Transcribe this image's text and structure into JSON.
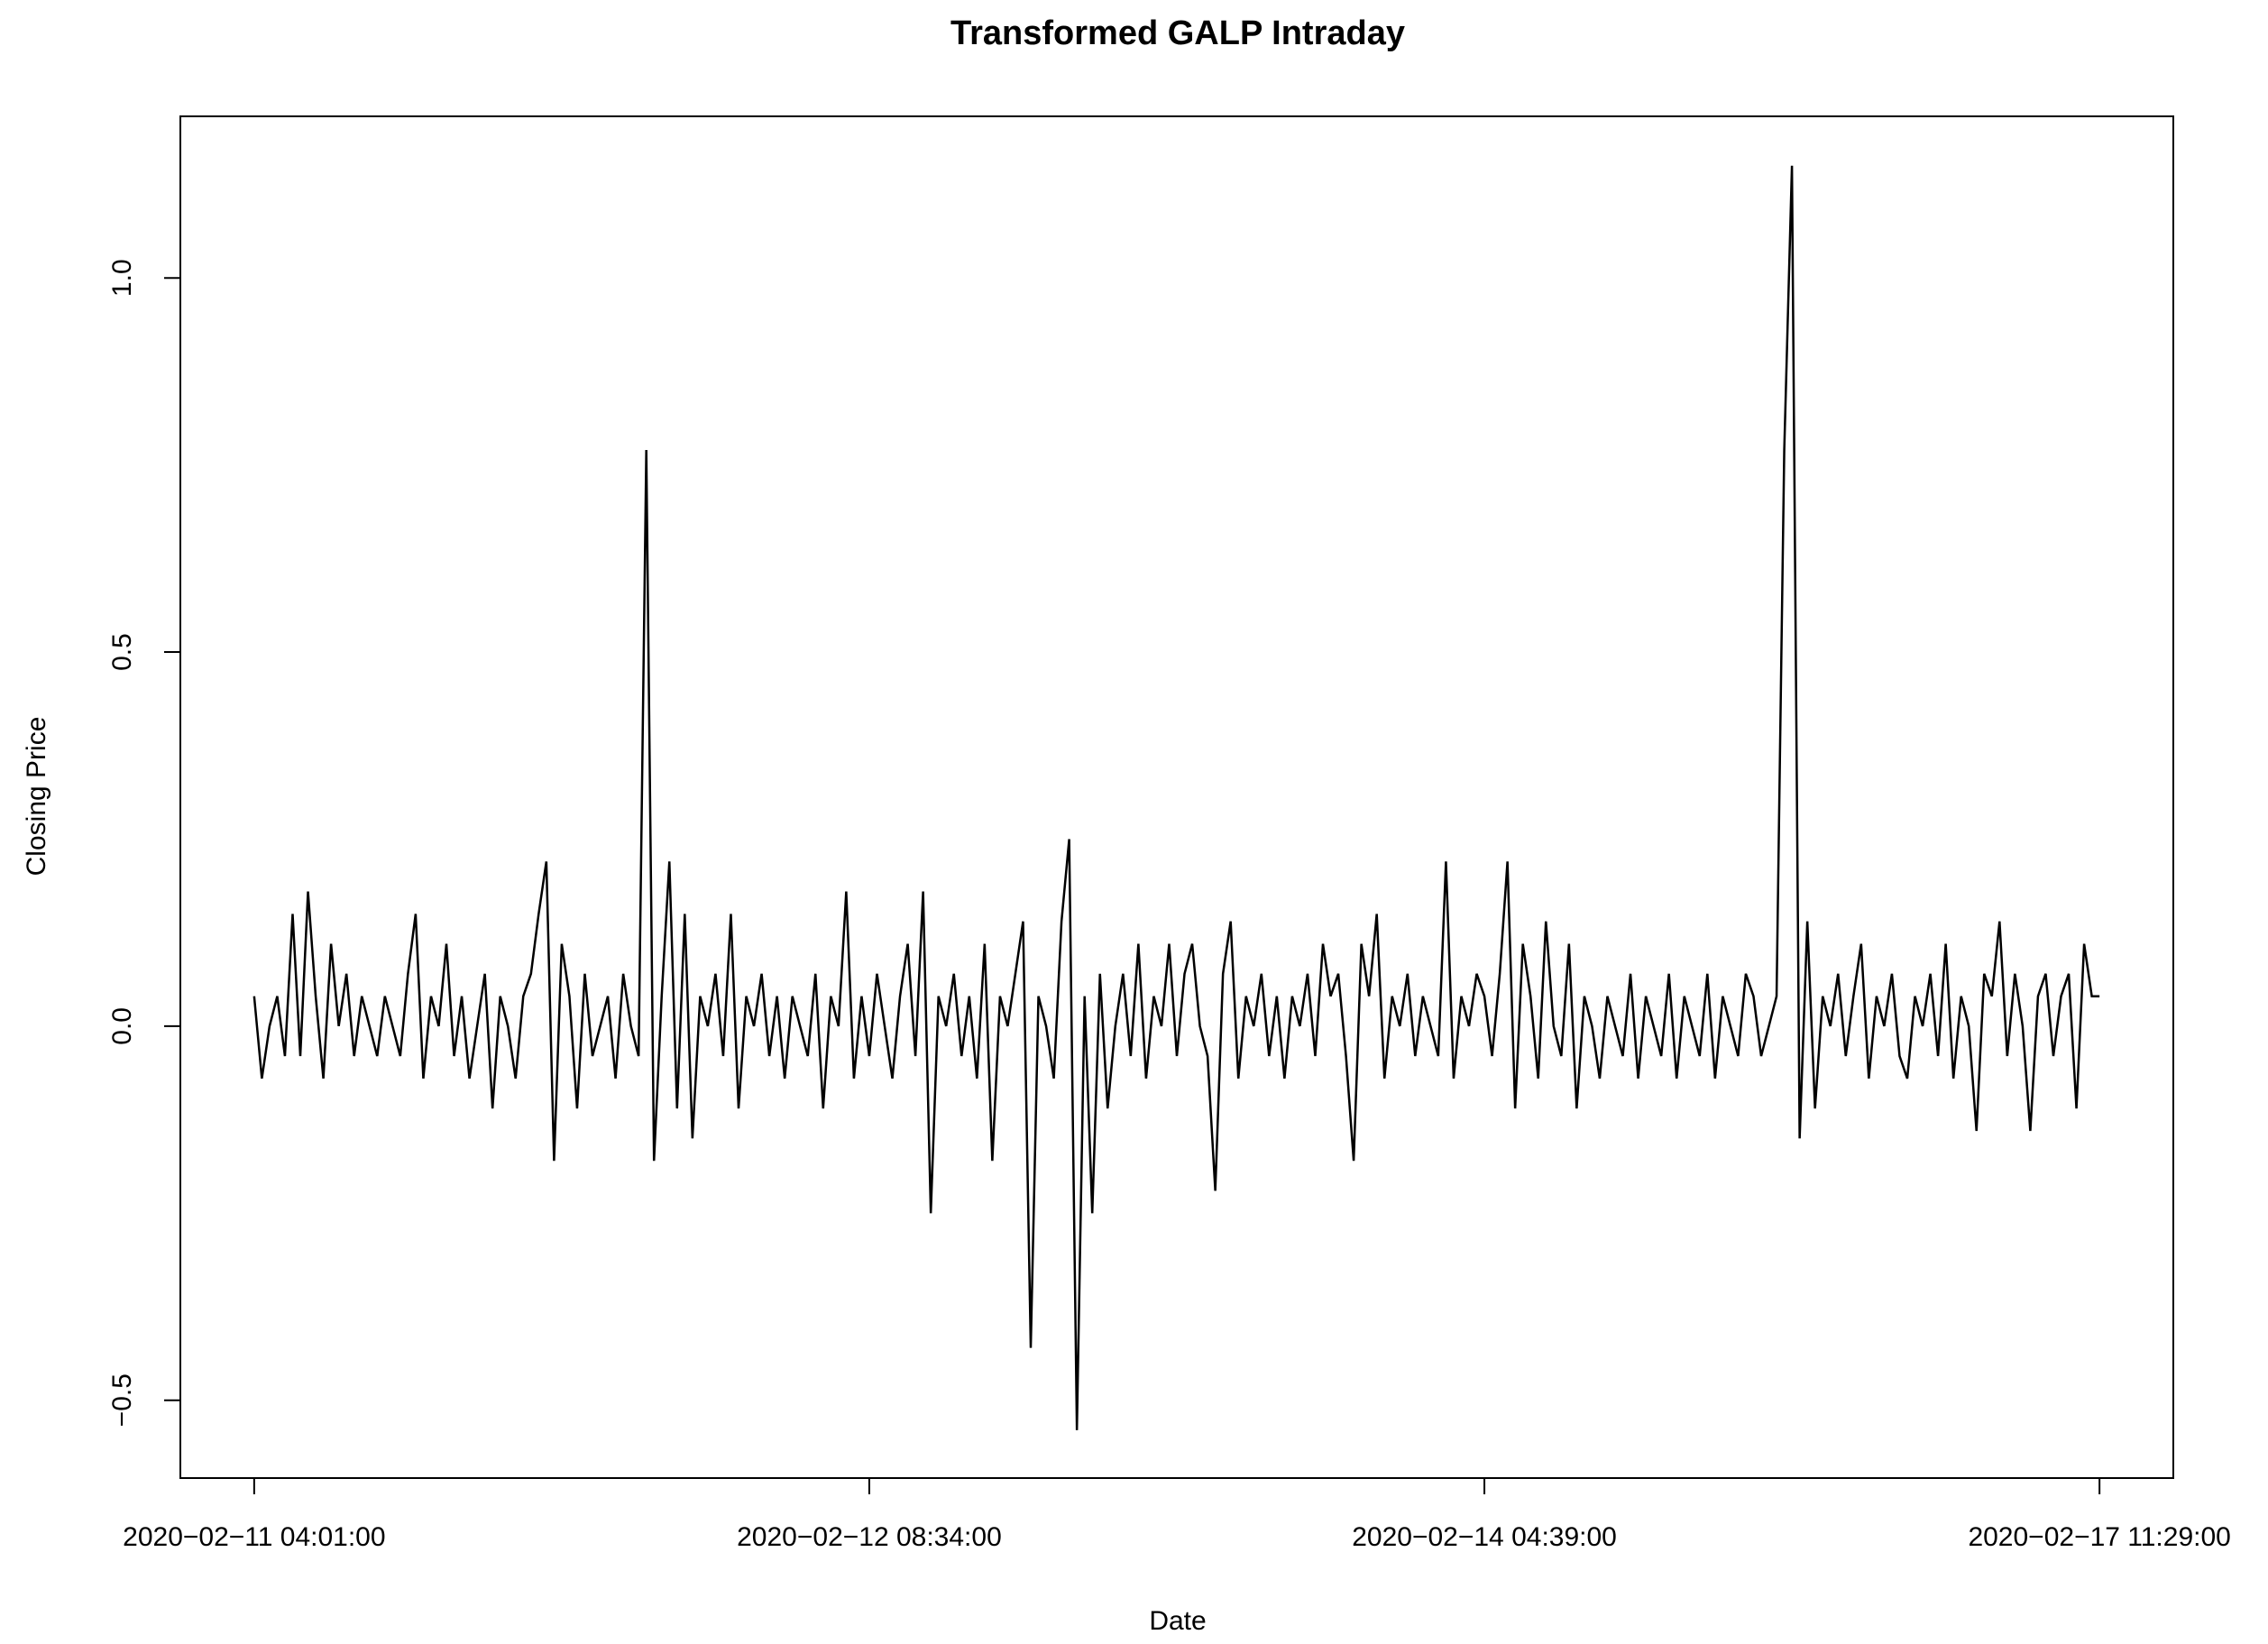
{
  "chart_data": {
    "type": "line",
    "title": "Transformed GALP Intraday",
    "x_label": "Date",
    "y_label": "Closing Price",
    "color": "#000000",
    "values": [
      0.04,
      -0.07,
      0,
      0.04,
      -0.04,
      0.15,
      -0.04,
      0.18,
      0.04,
      -0.07,
      0.11,
      0,
      0.07,
      -0.04,
      0.04,
      0,
      -0.04,
      0.04,
      0,
      -0.04,
      0.07,
      0.15,
      -0.07,
      0.04,
      0,
      0.11,
      -0.04,
      0.04,
      -0.07,
      0,
      0.07,
      -0.11,
      0.04,
      0,
      -0.07,
      0.04,
      0.07,
      0.15,
      0.22,
      -0.18,
      0.11,
      0.04,
      -0.11,
      0.07,
      -0.04,
      0,
      0.04,
      -0.07,
      0.07,
      0,
      -0.04,
      0.77,
      -0.18,
      0.04,
      0.22,
      -0.11,
      0.15,
      -0.15,
      0.04,
      0,
      0.07,
      -0.04,
      0.15,
      -0.11,
      0.04,
      0,
      0.07,
      -0.04,
      0.04,
      -0.07,
      0.04,
      0,
      -0.04,
      0.07,
      -0.11,
      0.04,
      0,
      0.18,
      -0.07,
      0.04,
      -0.04,
      0.07,
      0,
      -0.07,
      0.04,
      0.11,
      -0.04,
      0.18,
      -0.25,
      0.04,
      0,
      0.07,
      -0.04,
      0.04,
      -0.07,
      0.11,
      -0.18,
      0.04,
      0,
      0.07,
      0.14,
      -0.43,
      0.04,
      0,
      -0.07,
      0.14,
      0.25,
      -0.54,
      0.04,
      -0.25,
      0.07,
      -0.11,
      0,
      0.07,
      -0.04,
      0.11,
      -0.07,
      0.04,
      0,
      0.11,
      -0.04,
      0.07,
      0.11,
      0,
      -0.04,
      -0.22,
      0.07,
      0.14,
      -0.07,
      0.04,
      0,
      0.07,
      -0.04,
      0.04,
      -0.07,
      0.04,
      0,
      0.07,
      -0.04,
      0.11,
      0.04,
      0.07,
      -0.04,
      -0.18,
      0.11,
      0.04,
      0.15,
      -0.07,
      0.04,
      0,
      0.07,
      -0.04,
      0.04,
      0,
      -0.04,
      0.22,
      -0.07,
      0.04,
      0,
      0.07,
      0.04,
      -0.04,
      0.07,
      0.22,
      -0.11,
      0.11,
      0.04,
      -0.07,
      0.14,
      0,
      -0.04,
      0.11,
      -0.11,
      0.04,
      0,
      -0.07,
      0.04,
      0,
      -0.04,
      0.07,
      -0.07,
      0.04,
      0,
      -0.04,
      0.07,
      -0.07,
      0.04,
      0,
      -0.04,
      0.07,
      -0.07,
      0.04,
      0,
      -0.04,
      0.07,
      0.04,
      -0.04,
      0,
      0.04,
      0.77,
      1.15,
      -0.15,
      0.14,
      -0.11,
      0.04,
      0,
      0.07,
      -0.04,
      0.04,
      0.11,
      -0.07,
      0.04,
      0,
      0.07,
      -0.04,
      -0.07,
      0.04,
      0,
      0.07,
      -0.04,
      0.11,
      -0.07,
      0.04,
      0,
      -0.14,
      0.07,
      0.04,
      0.14,
      -0.04,
      0.07,
      0,
      -0.14,
      0.04,
      0.07,
      -0.04,
      0.04,
      0.07,
      -0.11,
      0.11,
      0.04,
      0.04
    ],
    "xlim": [
      -8.6,
      250.6
    ],
    "xticks": [
      {
        "value": 1,
        "label": "2020−02−11 04:01:00"
      },
      {
        "value": 81,
        "label": "2020−02−12 08:34:00"
      },
      {
        "value": 161,
        "label": "2020−02−14 04:39:00"
      },
      {
        "value": 241,
        "label": "2020−02−17 11:29:00"
      }
    ],
    "ylim": [
      -0.604,
      1.216
    ],
    "yticks": [
      {
        "value": -0.5,
        "label": "−0.5"
      },
      {
        "value": 0,
        "label": "0.0"
      },
      0.5,
      {
        "value": 1,
        "label": "1.0"
      }
    ]
  }
}
